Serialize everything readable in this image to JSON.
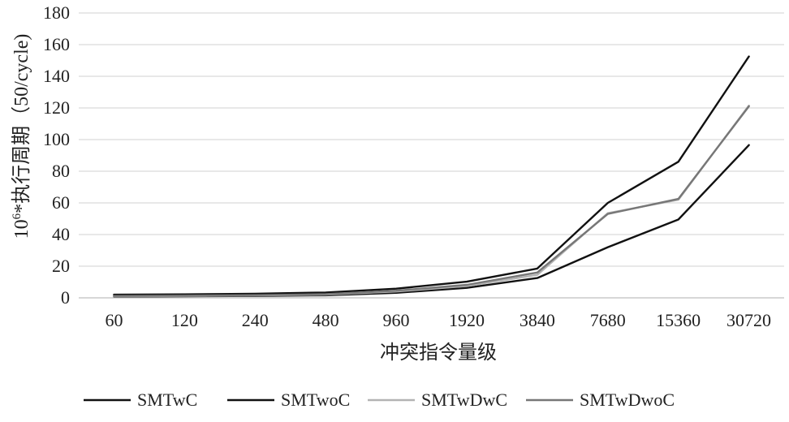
{
  "chart_data": {
    "type": "line",
    "title": "",
    "xlabel": "冲突指令量级",
    "ylabel_parts": {
      "base": "10",
      "sup": "6",
      "rest": "*执行周期（50/cycle)"
    },
    "categories": [
      "60",
      "120",
      "240",
      "480",
      "960",
      "1920",
      "3840",
      "7680",
      "15360",
      "30720"
    ],
    "ylim": [
      0,
      180
    ],
    "yticks": [
      0,
      20,
      40,
      60,
      80,
      100,
      120,
      140,
      160,
      180
    ],
    "grid": true,
    "legend_position": "bottom",
    "series": [
      {
        "name": "SMTwC",
        "color": "#111111",
        "values": [
          2.0,
          2.2,
          2.6,
          3.4,
          5.8,
          10.2,
          18.5,
          60.0,
          86.0,
          152.5
        ]
      },
      {
        "name": "SMTwoC",
        "color": "#111111",
        "values": [
          0.8,
          1.0,
          1.2,
          1.6,
          3.2,
          6.3,
          12.5,
          32.0,
          49.5,
          96.5
        ]
      },
      {
        "name": "SMTwDwC",
        "color": "#b3b3b3",
        "values": [
          1.0,
          1.2,
          1.5,
          2.0,
          4.0,
          7.5,
          14.5,
          53.5,
          62.0,
          121.5
        ]
      },
      {
        "name": "SMTwDwoC",
        "color": "#777777",
        "values": [
          1.2,
          1.4,
          1.7,
          2.3,
          4.5,
          8.2,
          16.0,
          53.0,
          62.5,
          121.0
        ]
      }
    ]
  }
}
